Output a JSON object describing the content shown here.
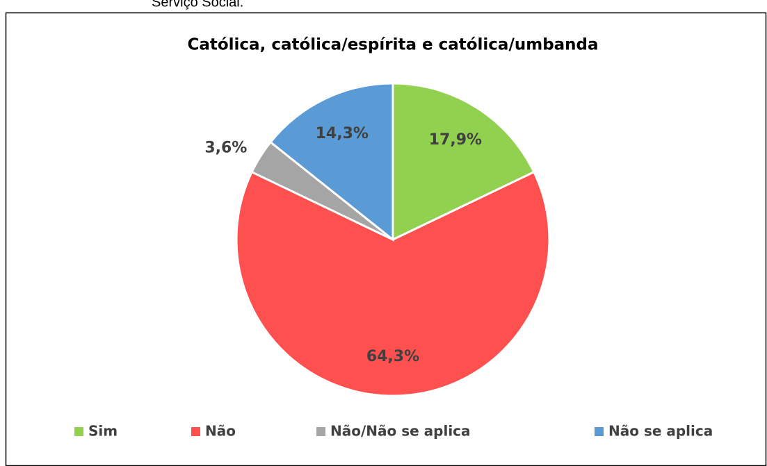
{
  "caption": "Serviço Social.",
  "chart_data": {
    "type": "pie",
    "title": "Católica, católica/espírita e católica/umbanda",
    "categories": [
      "Sim",
      "Não",
      "Não/Não se aplica",
      "Não se aplica"
    ],
    "values": [
      17.9,
      64.3,
      3.6,
      14.3
    ],
    "value_labels": [
      "17,9%",
      "64,3%",
      "3,6%",
      "14,3%"
    ],
    "colors": [
      "#92d050",
      "#ff5050",
      "#a5a5a5",
      "#5b9bd5"
    ],
    "legend": "bottom"
  }
}
